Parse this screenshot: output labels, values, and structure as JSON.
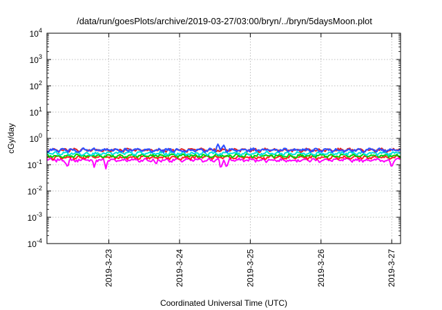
{
  "chart_data": {
    "type": "line",
    "title": "/data/run/goesPlots/archive/2019-03-27/03:00/bryn/../bryn/5daysMoon.plot",
    "xlabel": "Coordinated Universal Time (UTC)",
    "ylabel": "cGy/day",
    "yscale": "log",
    "ylim": [
      0.0001,
      10000
    ],
    "xlim": [
      "2019-03-22T03:00",
      "2019-03-27T03:00"
    ],
    "grid": true,
    "legend": "none",
    "x_ticks": [
      "2019-3-23",
      "2019-3-24",
      "2019-3-25",
      "2019-3-26",
      "2019-3-27"
    ],
    "y_ticks": [
      {
        "base": "10",
        "exp": "-4",
        "value": 0.0001
      },
      {
        "base": "10",
        "exp": "-3",
        "value": 0.001
      },
      {
        "base": "10",
        "exp": "-2",
        "value": 0.01
      },
      {
        "base": "10",
        "exp": "-1",
        "value": 0.1
      },
      {
        "base": "10",
        "exp": "0",
        "value": 1
      },
      {
        "base": "10",
        "exp": "1",
        "value": 10
      },
      {
        "base": "10",
        "exp": "2",
        "value": 100
      },
      {
        "base": "10",
        "exp": "3",
        "value": 1000
      },
      {
        "base": "10",
        "exp": "4",
        "value": 10000
      }
    ],
    "series": [
      {
        "color": "#ff00ff",
        "level": 0.15,
        "spikes": [
          {
            "x": "2019-03-22T10:00",
            "y": 0.07
          },
          {
            "x": "2019-03-22T19:00",
            "y": 0.08
          },
          {
            "x": "2019-03-22T23:00",
            "y": 0.07
          },
          {
            "x": "2019-03-23T16:00",
            "y": 0.1
          },
          {
            "x": "2019-03-24T14:00",
            "y": 0.06
          },
          {
            "x": "2019-03-24T16:00",
            "y": 0.07
          },
          {
            "x": "2019-03-27T00:00",
            "y": 0.07
          }
        ]
      },
      {
        "color": "#ff2020",
        "level": 0.19,
        "spikes": []
      },
      {
        "color": "#00d000",
        "level": 0.22,
        "spikes": []
      },
      {
        "color": "#00e0e0",
        "level": 0.27,
        "spikes": []
      },
      {
        "color": "#e02020",
        "level": 0.36,
        "spikes": []
      },
      {
        "color": "#3050ff",
        "level": 0.36,
        "spikes": [
          {
            "x": "2019-03-24T13:00",
            "y": 0.6
          },
          {
            "x": "2019-03-24T15:00",
            "y": 0.55
          }
        ]
      }
    ]
  }
}
